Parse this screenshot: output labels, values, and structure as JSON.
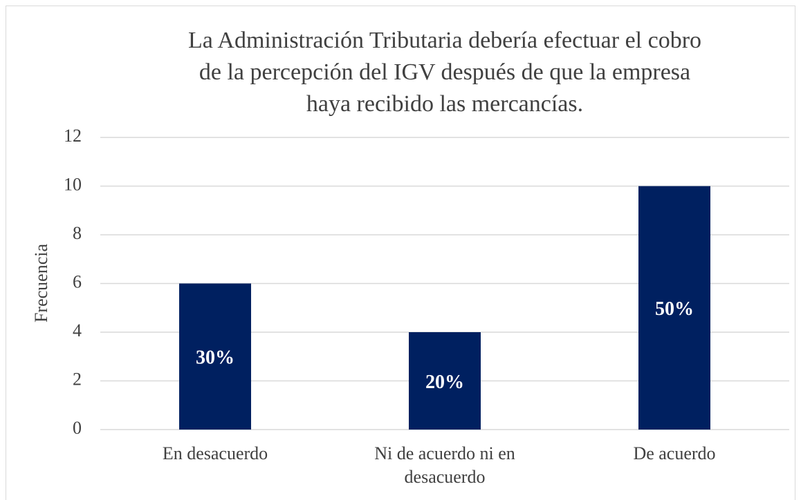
{
  "chart_data": {
    "type": "bar",
    "title": "La Administración Tributaria debería efectuar el cobro de la percepción del IGV después de que la empresa haya recibido las mercancías.",
    "y_label": "Frecuencia",
    "categories": [
      "En desacuerdo",
      "Ni de acuerdo ni en desacuerdo",
      "De acuerdo"
    ],
    "values": [
      6,
      4,
      10
    ],
    "data_labels": [
      "30%",
      "20%",
      "50%"
    ],
    "color": "#002060",
    "ylim": [
      0,
      12
    ],
    "yticks": [
      0,
      2,
      4,
      6,
      8,
      10,
      12
    ],
    "grid": true
  }
}
